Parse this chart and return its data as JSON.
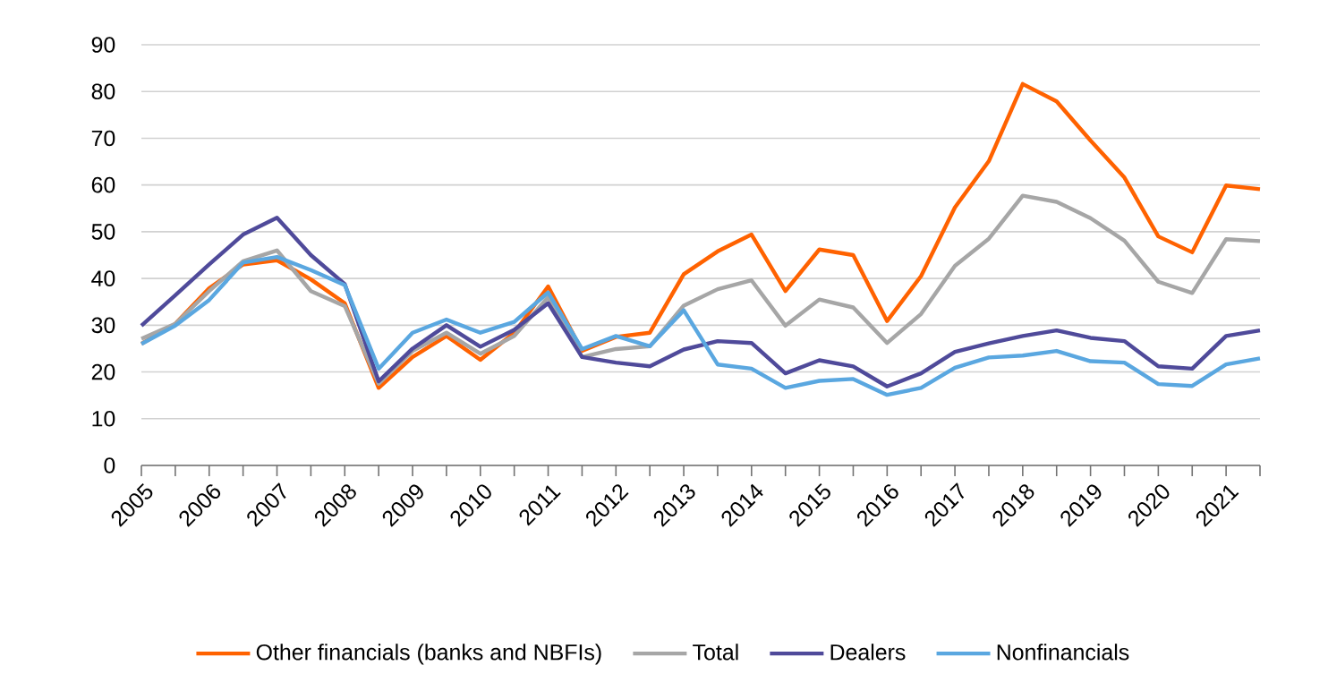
{
  "chart_data": {
    "type": "line",
    "categories": [
      "2005",
      null,
      "2006",
      null,
      "2007",
      null,
      "2008",
      null,
      "2009",
      null,
      "2010",
      null,
      "2011",
      null,
      "2012",
      null,
      "2013",
      null,
      "2014",
      null,
      "2015",
      null,
      "2016",
      null,
      "2017",
      null,
      "2018",
      null,
      "2019",
      null,
      "2020",
      null,
      "2021",
      null
    ],
    "series": [
      {
        "name": "Other financials (banks and NBFIs)",
        "color": "#ff6200",
        "values": [
          26,
          30.3,
          37.9,
          43,
          43.9,
          39.8,
          34.7,
          16.6,
          23.2,
          27.7,
          22.6,
          28.4,
          38.3,
          24.5,
          27.5,
          28.4,
          40.9,
          45.8,
          49.4,
          37.3,
          46.2,
          45,
          30.9,
          40.5,
          55.2,
          65.1,
          81.6,
          77.9,
          69.5,
          61.6,
          49,
          45.6,
          59.9,
          59.1
        ]
      },
      {
        "name": "Total",
        "color": "#a6a6a6",
        "values": [
          27.1,
          30.3,
          37.3,
          43.7,
          46,
          37.3,
          34.1,
          17.5,
          24.5,
          28.4,
          23.9,
          27.7,
          36,
          23.2,
          24.9,
          25.5,
          34.2,
          37.7,
          39.6,
          29.9,
          35.5,
          33.8,
          26.2,
          32.4,
          42.7,
          48.5,
          57.7,
          56.4,
          52.9,
          48.1,
          39.3,
          36.9,
          48.4,
          48
        ]
      },
      {
        "name": "Dealers",
        "color": "#4f4a9a",
        "values": [
          29.9,
          36.4,
          43,
          49.4,
          53,
          45,
          38.8,
          18,
          25,
          30,
          25.4,
          29,
          34.7,
          23.2,
          22,
          21.2,
          24.8,
          26.6,
          26.2,
          19.7,
          22.5,
          21.2,
          16.9,
          19.7,
          24.3,
          26.1,
          27.7,
          28.9,
          27.3,
          26.6,
          21.2,
          20.7,
          27.7,
          28.9
        ]
      },
      {
        "name": "Nonfinancials",
        "color": "#5aa7e0",
        "values": [
          26,
          29.9,
          35.4,
          43.4,
          44.6,
          41.8,
          38.6,
          20.7,
          28.4,
          31.2,
          28.4,
          30.7,
          37,
          24.9,
          27.7,
          25.5,
          33.2,
          21.6,
          20.7,
          16.6,
          18.1,
          18.5,
          15.1,
          16.6,
          20.9,
          23.1,
          23.5,
          24.5,
          22.3,
          22,
          17.4,
          17,
          21.6,
          22.9
        ]
      }
    ],
    "ylim": [
      0,
      90
    ],
    "yticks": [
      0,
      10,
      20,
      30,
      40,
      50,
      60,
      70,
      80,
      90
    ],
    "grid": "y",
    "legend": "bottom"
  }
}
